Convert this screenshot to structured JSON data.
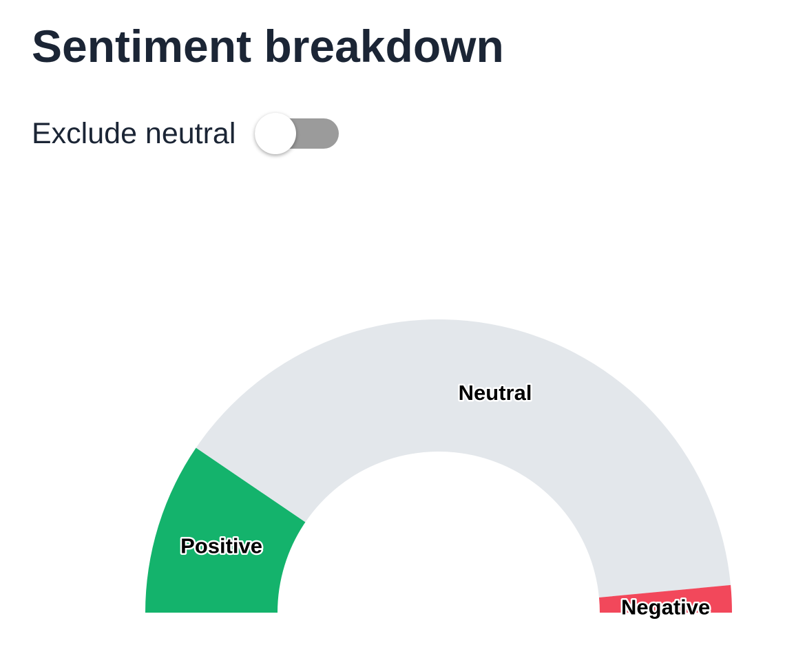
{
  "header": {
    "title": "Sentiment breakdown"
  },
  "toggle": {
    "label": "Exclude neutral",
    "checked": false
  },
  "colors": {
    "positive": "#14b36c",
    "neutral": "#e3e7eb",
    "negative": "#f2485b",
    "toggle_track": "#9b9b9b",
    "title_text": "#1b2535"
  },
  "chart_data": {
    "type": "pie",
    "shape": "half-donut",
    "categories": [
      "Positive",
      "Neutral",
      "Negative"
    ],
    "values": [
      19,
      78,
      3
    ],
    "legend": "none",
    "data_labels": [
      "Positive",
      "Neutral",
      "Negative"
    ]
  }
}
